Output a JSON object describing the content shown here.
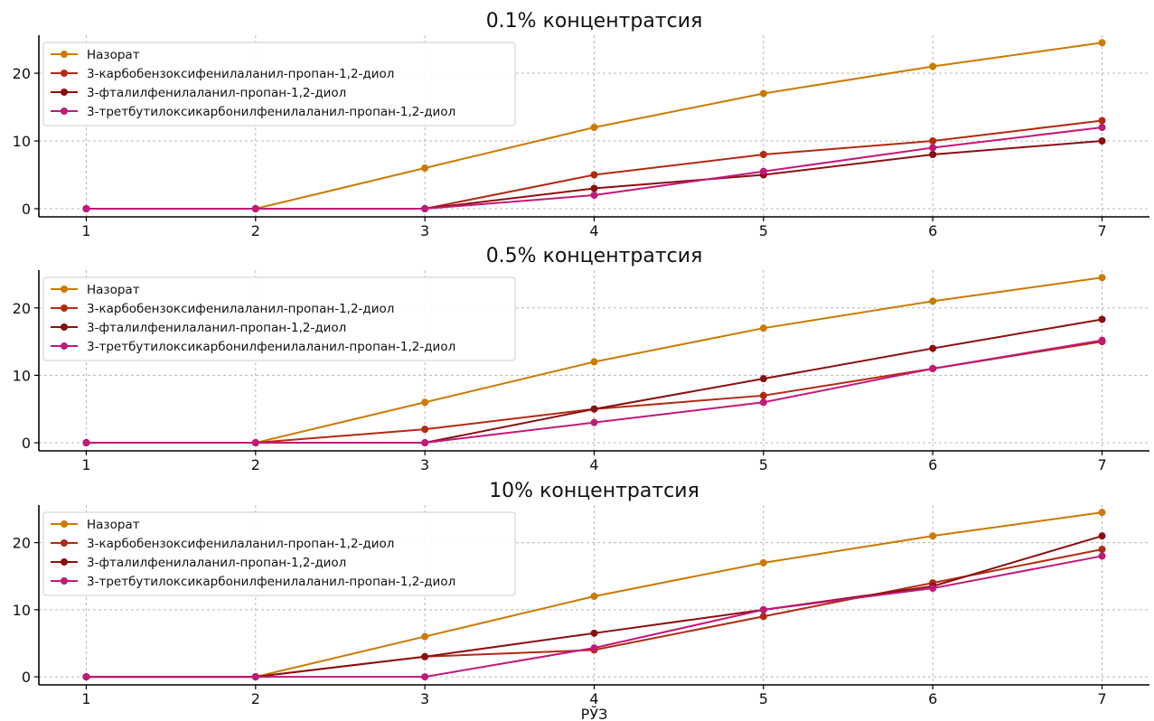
{
  "chart_data": [
    {
      "type": "line",
      "title": "0.1% концентратсия",
      "xlabel": "",
      "ylabel": "",
      "x": [
        1,
        2,
        3,
        4,
        5,
        6,
        7
      ],
      "xlim": [
        0.72,
        7.28
      ],
      "ylim": [
        -1.2,
        25.6
      ],
      "yticks": [
        0,
        10,
        20
      ],
      "grid": true,
      "legend": "top-left",
      "series": [
        {
          "name": "Назорат",
          "color": "#cc7a00",
          "values": [
            0,
            0,
            6,
            12,
            17,
            21,
            24.5
          ]
        },
        {
          "name": "3-карбобензоксифенилаланил-пропан-1,2-диол",
          "color": "#b22a10",
          "values": [
            0,
            0,
            0,
            5,
            8,
            10,
            13
          ]
        },
        {
          "name": "3-фталилфенилаланил-пропан-1,2-диол",
          "color": "#8b0f0f",
          "values": [
            0,
            0,
            0,
            3,
            5,
            8,
            10
          ]
        },
        {
          "name": "3-третбутилоксикарбонилфенилаланил-пропан-1,2-диол",
          "color": "#c2187a",
          "values": [
            0,
            0,
            0,
            2,
            5.5,
            9,
            12
          ]
        }
      ]
    },
    {
      "type": "line",
      "title": "0.5% концентратсия",
      "xlabel": "",
      "ylabel": "",
      "x": [
        1,
        2,
        3,
        4,
        5,
        6,
        7
      ],
      "xlim": [
        0.72,
        7.28
      ],
      "ylim": [
        -1.2,
        25.6
      ],
      "yticks": [
        0,
        10,
        20
      ],
      "grid": true,
      "legend": "top-left",
      "series": [
        {
          "name": "Назорат",
          "color": "#cc7a00",
          "values": [
            0,
            0,
            6,
            12,
            17,
            21,
            24.5
          ]
        },
        {
          "name": "3-карбобензоксифенилаланил-пропан-1,2-диол",
          "color": "#b22a10",
          "values": [
            0,
            0,
            2,
            5,
            7,
            11,
            15
          ]
        },
        {
          "name": "3-фталилфенилаланил-пропан-1,2-диол",
          "color": "#8b0f0f",
          "values": [
            0,
            0,
            0,
            5,
            9.5,
            14,
            18.3
          ]
        },
        {
          "name": "3-третбутилоксикарбонилфенилаланил-пропан-1,2-диол",
          "color": "#c2187a",
          "values": [
            0,
            0,
            0,
            3,
            6,
            11,
            15.2
          ]
        }
      ]
    },
    {
      "type": "line",
      "title": "10% концентратсия",
      "xlabel": "РЎЗ",
      "ylabel": "",
      "x": [
        1,
        2,
        3,
        4,
        5,
        6,
        7
      ],
      "xlim": [
        0.72,
        7.28
      ],
      "ylim": [
        -1.2,
        25.6
      ],
      "yticks": [
        0,
        10,
        20
      ],
      "grid": true,
      "legend": "top-left",
      "series": [
        {
          "name": "Назорат",
          "color": "#cc7a00",
          "values": [
            0,
            0,
            6,
            12,
            17,
            21,
            24.5
          ]
        },
        {
          "name": "3-карбобензоксифенилаланил-пропан-1,2-диол",
          "color": "#b22a10",
          "values": [
            0,
            0,
            3,
            4,
            9,
            14,
            19
          ]
        },
        {
          "name": "3-фталилфенилаланил-пропан-1,2-диол",
          "color": "#8b0f0f",
          "values": [
            0,
            0,
            3,
            6.5,
            10,
            13.5,
            21
          ]
        },
        {
          "name": "3-третбутилоксикарбонилфенилаланил-пропан-1,2-диол",
          "color": "#c2187a",
          "values": [
            0,
            0,
            0,
            4.3,
            10,
            13.2,
            18
          ]
        }
      ]
    }
  ]
}
